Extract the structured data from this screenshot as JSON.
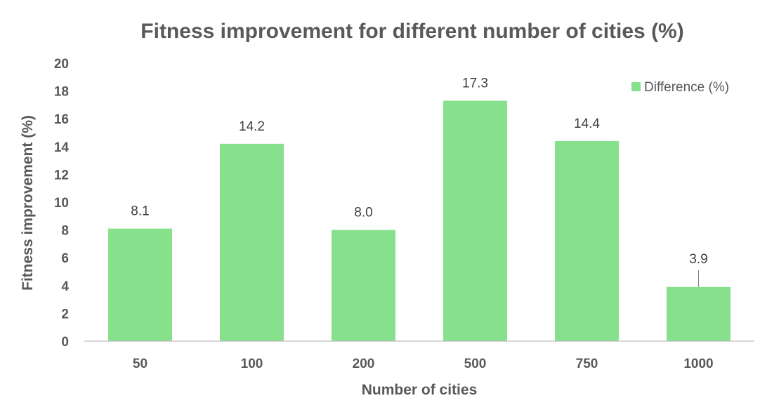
{
  "chart_data": {
    "type": "bar",
    "title": "Fitness improvement for different number of cities (%)",
    "xlabel": "Number of cities",
    "ylabel": "Fitness improvement (%)",
    "categories": [
      "50",
      "100",
      "200",
      "500",
      "750",
      "1000"
    ],
    "series": [
      {
        "name": "Difference (%)",
        "values": [
          8.1,
          14.2,
          8.0,
          17.3,
          14.4,
          3.9
        ],
        "labels": [
          "8.1",
          "14.2",
          "8.0",
          "17.3",
          "14.4",
          "3.9"
        ],
        "color": "#86E08C"
      }
    ],
    "ylim": [
      0,
      20
    ],
    "yticks": [
      "0",
      "2",
      "4",
      "6",
      "8",
      "10",
      "12",
      "14",
      "16",
      "18",
      "20"
    ],
    "grid": false,
    "legend": {
      "position": "top-right",
      "label": "Difference (%)"
    },
    "colors": {
      "text": "#595959",
      "axis": "#BFBFBF",
      "bar": "#86E08C",
      "leader": "#808080"
    }
  }
}
